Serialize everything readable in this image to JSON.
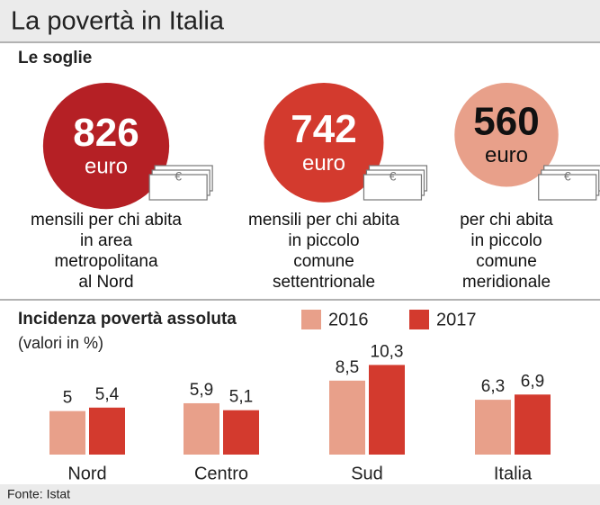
{
  "title": "La povertà in Italia",
  "soglie": {
    "title": "Le soglie",
    "items": [
      {
        "value": 826,
        "unit": "euro",
        "color": "#b52025",
        "text_color": "#ffffff",
        "lines": [
          "mensili per chi abita",
          "in area",
          "metropolitana",
          "al Nord"
        ]
      },
      {
        "value": 742,
        "unit": "euro",
        "color": "#d33a2e",
        "text_color": "#ffffff",
        "lines": [
          "mensili per chi abita",
          "in piccolo",
          "comune",
          "settentrionale"
        ]
      },
      {
        "value": 560,
        "unit": "euro",
        "color": "#e8a08a",
        "text_color": "#111111",
        "lines": [
          "per chi abita",
          "in piccolo",
          "comune",
          "meridionale"
        ]
      }
    ]
  },
  "chart_data": {
    "type": "bar",
    "title": "Incidenza povertà assoluta",
    "subtitle": "(valori in %)",
    "categories": [
      "Nord",
      "Centro",
      "Sud",
      "Italia"
    ],
    "series": [
      {
        "name": "2016",
        "color": "#e8a08a",
        "values": [
          5,
          5.9,
          8.5,
          6.3
        ],
        "value_labels": [
          "5",
          "5,9",
          "8,5",
          "6,3"
        ]
      },
      {
        "name": "2017",
        "color": "#d33a2e",
        "values": [
          5.4,
          5.1,
          10.3,
          6.9
        ],
        "value_labels": [
          "5,4",
          "5,1",
          "10,3",
          "6,9"
        ]
      }
    ],
    "ylim": [
      0,
      12
    ]
  },
  "source": "Fonte: Istat"
}
